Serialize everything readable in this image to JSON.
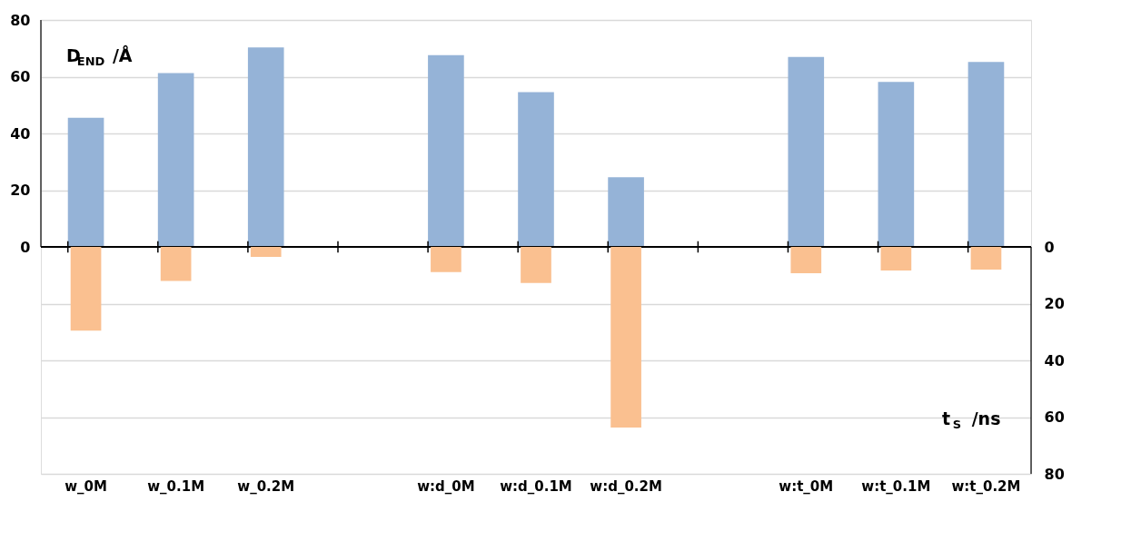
{
  "chart_data": {
    "type": "bar",
    "categories": [
      "w_0M",
      "w_0.1M",
      "w_0.2M",
      null,
      "w:d_0M",
      "w:d_0.1M",
      "w:d_0.2M",
      null,
      "w:t_0M",
      "w:t_0.1M",
      "w:t_0.2M"
    ],
    "series": [
      {
        "color": "#95b3d7",
        "values": [
          45.5,
          61.3,
          70.3,
          null,
          67.6,
          54.6,
          24.6,
          null,
          67.0,
          58.2,
          65.2
        ]
      },
      {
        "color": "#fac090",
        "axis": "y2",
        "values": [
          29.5,
          12.0,
          3.5,
          null,
          8.9,
          12.7,
          63.7,
          null,
          9.3,
          8.3,
          8.0
        ]
      }
    ],
    "ylabel": "D$_{END}$ /Å",
    "y2label": "t$_{S}$ /ns",
    "ylim": [
      -80,
      80
    ],
    "yticks": [
      {
        "value": -80,
        "label": null
      },
      {
        "value": -60,
        "label": null
      },
      {
        "value": -40,
        "label": null
      },
      {
        "value": -20,
        "label": null
      },
      0,
      20,
      40,
      60,
      80
    ],
    "y2lim": [
      80,
      -80
    ],
    "y2ticks": [
      0,
      20,
      40,
      60,
      80
    ],
    "grid": "y"
  }
}
